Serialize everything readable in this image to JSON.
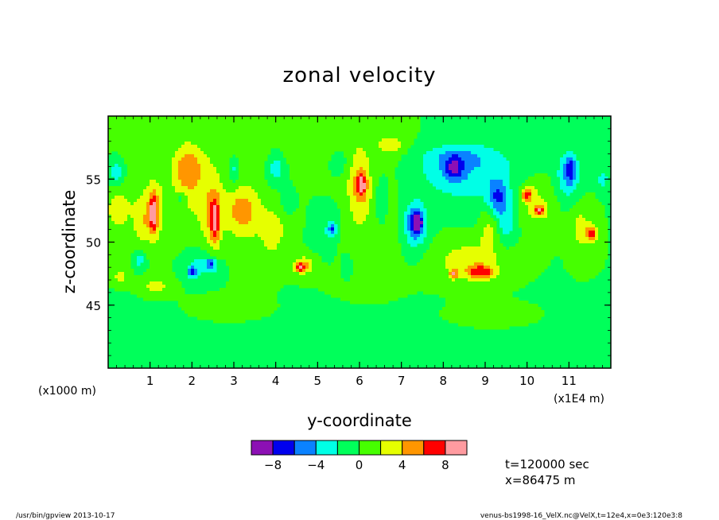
{
  "colors": {
    "levels": [
      "#8c10b4",
      "#0000ee",
      "#0a82ff",
      "#00ffe6",
      "#00ff5a",
      "#46ff00",
      "#e6ff00",
      "#ff9600",
      "#ff0000",
      "#ff9ba0"
    ],
    "background_level_index": 4
  },
  "chart_data": {
    "type": "heatmap",
    "title": "zonal velocity",
    "xlabel": "y-coordinate",
    "ylabel": "z-coordinate",
    "x_units": "(x1E4 m)",
    "y_units": "(x1000 m)",
    "xlim": [
      0,
      12
    ],
    "ylim": [
      40,
      60
    ],
    "xticks": [
      1,
      2,
      3,
      4,
      5,
      6,
      7,
      8,
      9,
      10,
      11
    ],
    "xtick_labels": [
      "1",
      "2",
      "3",
      "4",
      "5",
      "6",
      "7",
      "8",
      "9",
      "10",
      "11"
    ],
    "yticks": [
      45,
      50,
      55
    ],
    "ytick_labels": [
      "45",
      "50",
      "55"
    ],
    "colorbar": {
      "boundaries": [
        -10,
        -8,
        -6,
        -4,
        -2,
        0,
        2,
        4,
        6,
        8,
        10
      ],
      "tick_labels": [
        "−8",
        "−4",
        "0",
        "4",
        "8"
      ],
      "tick_values": [
        -8,
        -4,
        0,
        4,
        8
      ]
    },
    "features": [
      {
        "x": 0.55,
        "y": 53.0,
        "rx": 0.45,
        "ry": 3.2,
        "v": 1.4
      },
      {
        "x": 0.8,
        "y": 51.5,
        "rx": 0.2,
        "ry": 1.8,
        "v": 2.4
      },
      {
        "x": 0.2,
        "y": 52.5,
        "rx": 0.25,
        "ry": 1.5,
        "v": 3.0
      },
      {
        "x": 1.1,
        "y": 52.5,
        "rx": 0.25,
        "ry": 2.6,
        "v": 3.8
      },
      {
        "x": 1.08,
        "y": 52.2,
        "rx": 0.1,
        "ry": 1.6,
        "v": 6.4
      },
      {
        "x": 0.2,
        "y": 55.5,
        "rx": 0.2,
        "ry": 1.0,
        "v": -3.5
      },
      {
        "x": 0.75,
        "y": 48.6,
        "rx": 0.15,
        "ry": 0.8,
        "v": -3.0
      },
      {
        "x": 1.15,
        "y": 46.5,
        "rx": 0.35,
        "ry": 0.7,
        "v": 3.0
      },
      {
        "x": 0.3,
        "y": 47.3,
        "rx": 0.2,
        "ry": 0.6,
        "v": 3.0
      },
      {
        "x": 1.9,
        "y": 55.3,
        "rx": 0.4,
        "ry": 2.8,
        "v": 3.4
      },
      {
        "x": 2.45,
        "y": 52.5,
        "rx": 0.3,
        "ry": 3.3,
        "v": 3.2
      },
      {
        "x": 2.55,
        "y": 51.6,
        "rx": 0.12,
        "ry": 2.0,
        "v": 6.3
      },
      {
        "x": 1.75,
        "y": 53.5,
        "rx": 0.12,
        "ry": 0.6,
        "v": -2.8
      },
      {
        "x": 2.25,
        "y": 48.2,
        "rx": 0.45,
        "ry": 1.3,
        "v": -3.0
      },
      {
        "x": 2.0,
        "y": 47.6,
        "rx": 0.12,
        "ry": 0.5,
        "v": -5.2
      },
      {
        "x": 2.45,
        "y": 48.2,
        "rx": 0.12,
        "ry": 0.5,
        "v": -5.2
      },
      {
        "x": 1.9,
        "y": 56.0,
        "rx": 0.4,
        "ry": 1.4,
        "v": 1.8
      },
      {
        "x": 3.0,
        "y": 55.8,
        "rx": 0.15,
        "ry": 1.3,
        "v": -3.2
      },
      {
        "x": 3.3,
        "y": 52.0,
        "rx": 0.55,
        "ry": 3.0,
        "v": 1.8
      },
      {
        "x": 3.2,
        "y": 52.5,
        "rx": 0.35,
        "ry": 1.6,
        "v": 3.4
      },
      {
        "x": 3.9,
        "y": 50.5,
        "rx": 0.3,
        "ry": 2.5,
        "v": 2.2
      },
      {
        "x": 4.0,
        "y": 56.0,
        "rx": 0.25,
        "ry": 1.6,
        "v": -3.2
      },
      {
        "x": 4.3,
        "y": 53.0,
        "rx": 0.2,
        "ry": 1.2,
        "v": -2.6
      },
      {
        "x": 4.3,
        "y": 51.5,
        "rx": 0.3,
        "ry": 2.0,
        "v": 1.5
      },
      {
        "x": 4.7,
        "y": 48.2,
        "rx": 0.3,
        "ry": 0.9,
        "v": 3.2
      },
      {
        "x": 4.6,
        "y": 48.0,
        "rx": 0.15,
        "ry": 0.4,
        "v": 6.2
      },
      {
        "x": 5.3,
        "y": 51.0,
        "rx": 0.5,
        "ry": 2.3,
        "v": -2.5
      },
      {
        "x": 5.35,
        "y": 51.0,
        "rx": 0.1,
        "ry": 0.5,
        "v": -5.2
      },
      {
        "x": 5.7,
        "y": 48.2,
        "rx": 0.15,
        "ry": 1.1,
        "v": -2.6
      },
      {
        "x": 5.7,
        "y": 50.5,
        "rx": 0.4,
        "ry": 2.0,
        "v": 1.2
      },
      {
        "x": 6.0,
        "y": 54.5,
        "rx": 0.3,
        "ry": 2.3,
        "v": 3.4
      },
      {
        "x": 6.05,
        "y": 54.6,
        "rx": 0.12,
        "ry": 1.0,
        "v": 6.2
      },
      {
        "x": 5.5,
        "y": 56.5,
        "rx": 0.25,
        "ry": 1.2,
        "v": -2.5
      },
      {
        "x": 6.75,
        "y": 57.7,
        "rx": 0.3,
        "ry": 0.6,
        "v": 3.2
      },
      {
        "x": 6.5,
        "y": 53.0,
        "rx": 0.2,
        "ry": 2.5,
        "v": -2.3
      },
      {
        "x": 7.3,
        "y": 51.3,
        "rx": 0.35,
        "ry": 2.5,
        "v": -3.4
      },
      {
        "x": 7.35,
        "y": 51.5,
        "rx": 0.2,
        "ry": 1.2,
        "v": -5.6
      },
      {
        "x": 7.4,
        "y": 51.6,
        "rx": 0.08,
        "ry": 0.5,
        "v": -8.4
      },
      {
        "x": 8.5,
        "y": 55.5,
        "rx": 1.4,
        "ry": 2.5,
        "v": -3.2
      },
      {
        "x": 8.3,
        "y": 56.8,
        "rx": 0.9,
        "ry": 1.0,
        "v": -2.5
      },
      {
        "x": 8.25,
        "y": 55.8,
        "rx": 0.25,
        "ry": 1.0,
        "v": -5.0
      },
      {
        "x": 9.3,
        "y": 53.5,
        "rx": 0.25,
        "ry": 1.5,
        "v": -5.0
      },
      {
        "x": 9.5,
        "y": 51.5,
        "rx": 0.3,
        "ry": 2.0,
        "v": -2.6
      },
      {
        "x": 8.6,
        "y": 48.5,
        "rx": 0.9,
        "ry": 1.8,
        "v": 3.2
      },
      {
        "x": 8.9,
        "y": 47.6,
        "rx": 0.35,
        "ry": 0.6,
        "v": 6.2
      },
      {
        "x": 8.25,
        "y": 47.5,
        "rx": 0.1,
        "ry": 0.4,
        "v": 6.2
      },
      {
        "x": 9.1,
        "y": 51.0,
        "rx": 0.25,
        "ry": 2.0,
        "v": 3.0
      },
      {
        "x": 10.2,
        "y": 53.0,
        "rx": 0.55,
        "ry": 2.5,
        "v": 3.0
      },
      {
        "x": 10.0,
        "y": 53.8,
        "rx": 0.15,
        "ry": 0.6,
        "v": 6.2
      },
      {
        "x": 10.3,
        "y": 52.5,
        "rx": 0.15,
        "ry": 0.4,
        "v": 6.2
      },
      {
        "x": 10.95,
        "y": 55.2,
        "rx": 0.3,
        "ry": 2.2,
        "v": -3.4
      },
      {
        "x": 11.05,
        "y": 55.8,
        "rx": 0.15,
        "ry": 1.2,
        "v": -5.0
      },
      {
        "x": 11.3,
        "y": 51.0,
        "rx": 0.3,
        "ry": 2.0,
        "v": 3.0
      },
      {
        "x": 11.55,
        "y": 50.7,
        "rx": 0.15,
        "ry": 0.6,
        "v": 6.2
      },
      {
        "x": 11.8,
        "y": 55.0,
        "rx": 0.15,
        "ry": 0.8,
        "v": -3.0
      },
      {
        "x": 9.9,
        "y": 49.0,
        "rx": 0.35,
        "ry": 1.0,
        "v": 1.2
      },
      {
        "x": 6.2,
        "y": 52.0,
        "rx": 1.0,
        "ry": 6.0,
        "v": 1.5
      },
      {
        "x": 2.5,
        "y": 54.0,
        "rx": 1.5,
        "ry": 5.0,
        "v": 1.0
      },
      {
        "x": 9.5,
        "y": 54.0,
        "rx": 1.5,
        "ry": 4.5,
        "v": -0.6
      },
      {
        "x": 6.0,
        "y": 43.0,
        "rx": 6.5,
        "ry": 2.5,
        "v": -0.7
      },
      {
        "x": 3.0,
        "y": 44.5,
        "rx": 1.2,
        "ry": 1.2,
        "v": 0.9
      },
      {
        "x": 9.0,
        "y": 44.0,
        "rx": 1.5,
        "ry": 1.3,
        "v": 0.9
      },
      {
        "x": 5.0,
        "y": 57.5,
        "rx": 2.5,
        "ry": 1.5,
        "v": 1.2
      },
      {
        "x": 0.5,
        "y": 59.0,
        "rx": 1.0,
        "ry": 1.0,
        "v": 1.0
      }
    ]
  },
  "annotations": {
    "time": "t=120000 sec",
    "position": "x=86475 m"
  },
  "footer": {
    "left": "/usr/bin/gpview   2013-10-17",
    "right": "venus-bs1998-16_VelX.nc@VelX,t=12e4,x=0e3:120e3:8"
  }
}
